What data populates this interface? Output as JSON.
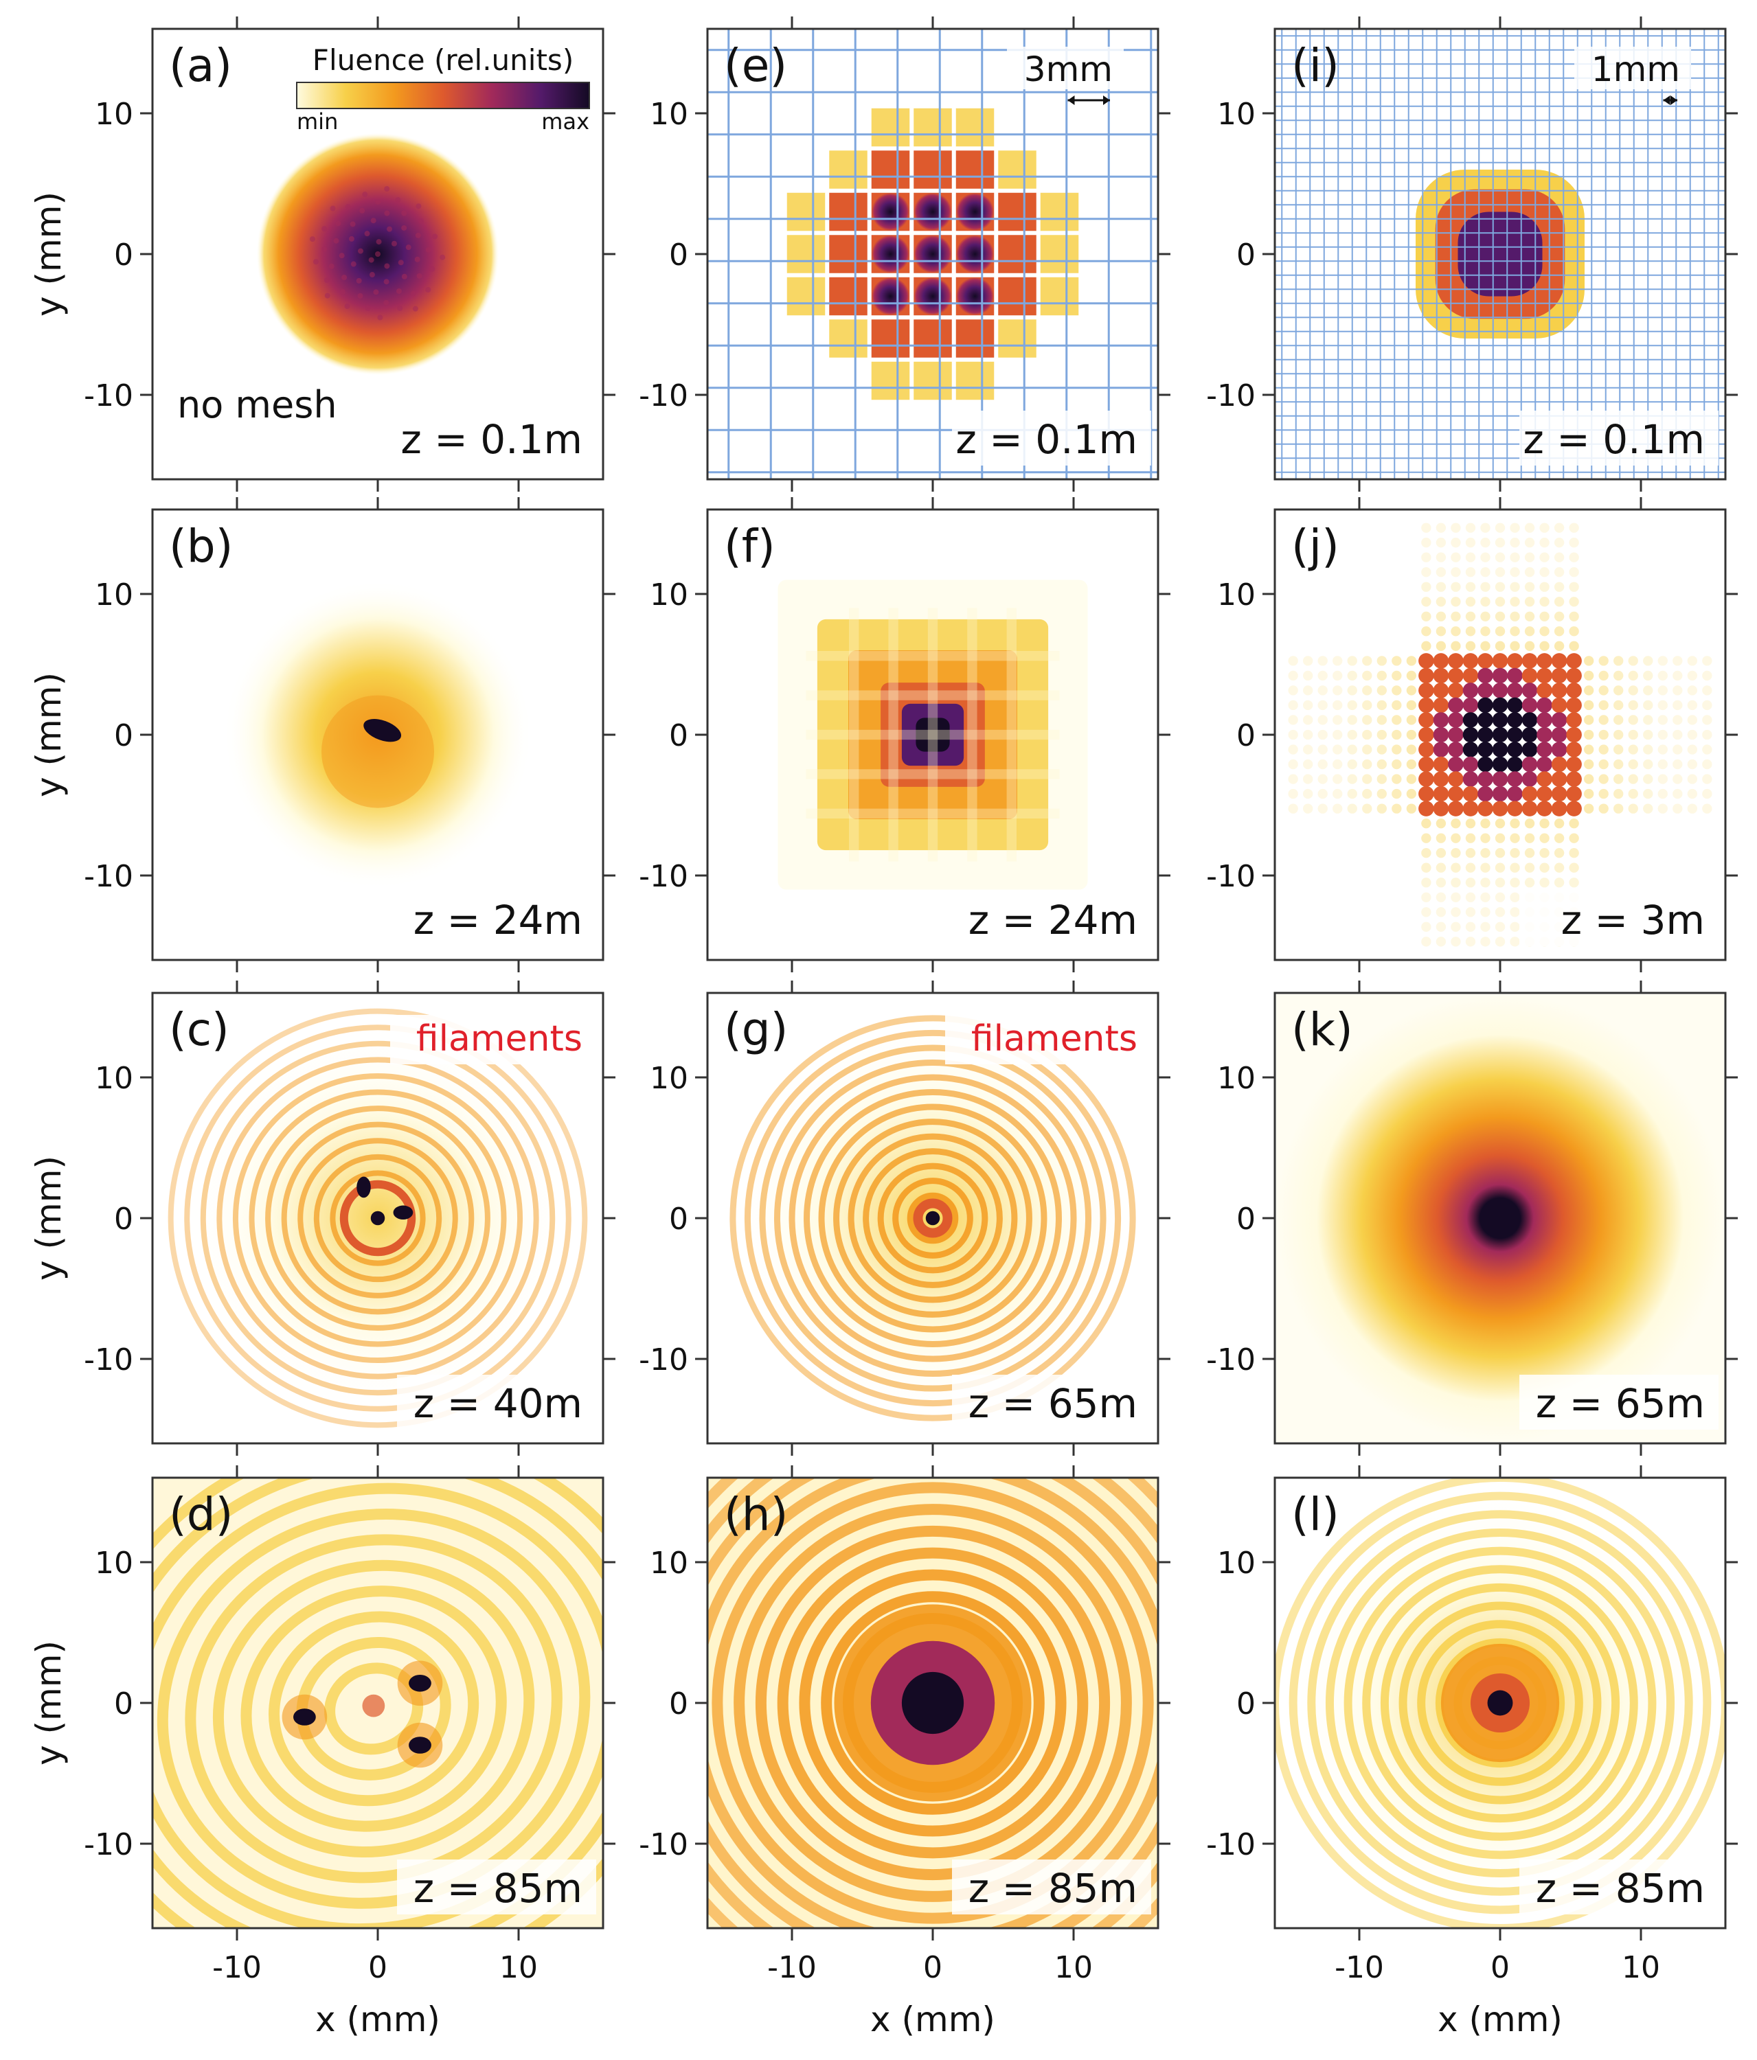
{
  "figure": {
    "axes": {
      "xlabel": "x (mm)",
      "ylabel": "y (mm)",
      "xticks": [
        "-10",
        "0",
        "10"
      ],
      "yticks": [
        "10",
        "0",
        "-10"
      ],
      "range_mm": [
        -16,
        16
      ]
    },
    "colorbar": {
      "title": "Fluence (rel.units)",
      "min_label": "min",
      "max_label": "max",
      "colors": [
        "#fffbe0",
        "#f7d04a",
        "#f39a1e",
        "#de5a2d",
        "#a22a5a",
        "#541a6a",
        "#140a24"
      ]
    },
    "colors": {
      "mesh_lines": "#7fa7de",
      "annotation_red": "#e0202a"
    },
    "panels": [
      {
        "letter": "(a)",
        "z": "z = 0.1m",
        "note": "no mesh",
        "pattern": "gaussian-speckled"
      },
      {
        "letter": "(b)",
        "z": "z = 24m",
        "pattern": "gaussian-hotspot"
      },
      {
        "letter": "(c)",
        "z": "z = 40m",
        "note": "filaments",
        "pattern": "rings-filaments"
      },
      {
        "letter": "(d)",
        "z": "z = 85m",
        "pattern": "rings-distorted"
      },
      {
        "letter": "(e)",
        "z": "z = 0.1m",
        "scale_bar": "3mm",
        "pattern": "coarse-mesh"
      },
      {
        "letter": "(f)",
        "z": "z = 24m",
        "pattern": "square-diffraction"
      },
      {
        "letter": "(g)",
        "z": "z = 65m",
        "note": "filaments",
        "pattern": "rings-ring-core"
      },
      {
        "letter": "(h)",
        "z": "z = 85m",
        "pattern": "rings-wide"
      },
      {
        "letter": "(i)",
        "z": "z = 0.1m",
        "scale_bar": "1mm",
        "pattern": "fine-mesh"
      },
      {
        "letter": "(j)",
        "z": "z = 3m",
        "pattern": "grid-spots"
      },
      {
        "letter": "(k)",
        "z": "z = 65m",
        "pattern": "broad-core"
      },
      {
        "letter": "(l)",
        "z": "z = 85m",
        "pattern": "rings-small-core"
      }
    ]
  }
}
